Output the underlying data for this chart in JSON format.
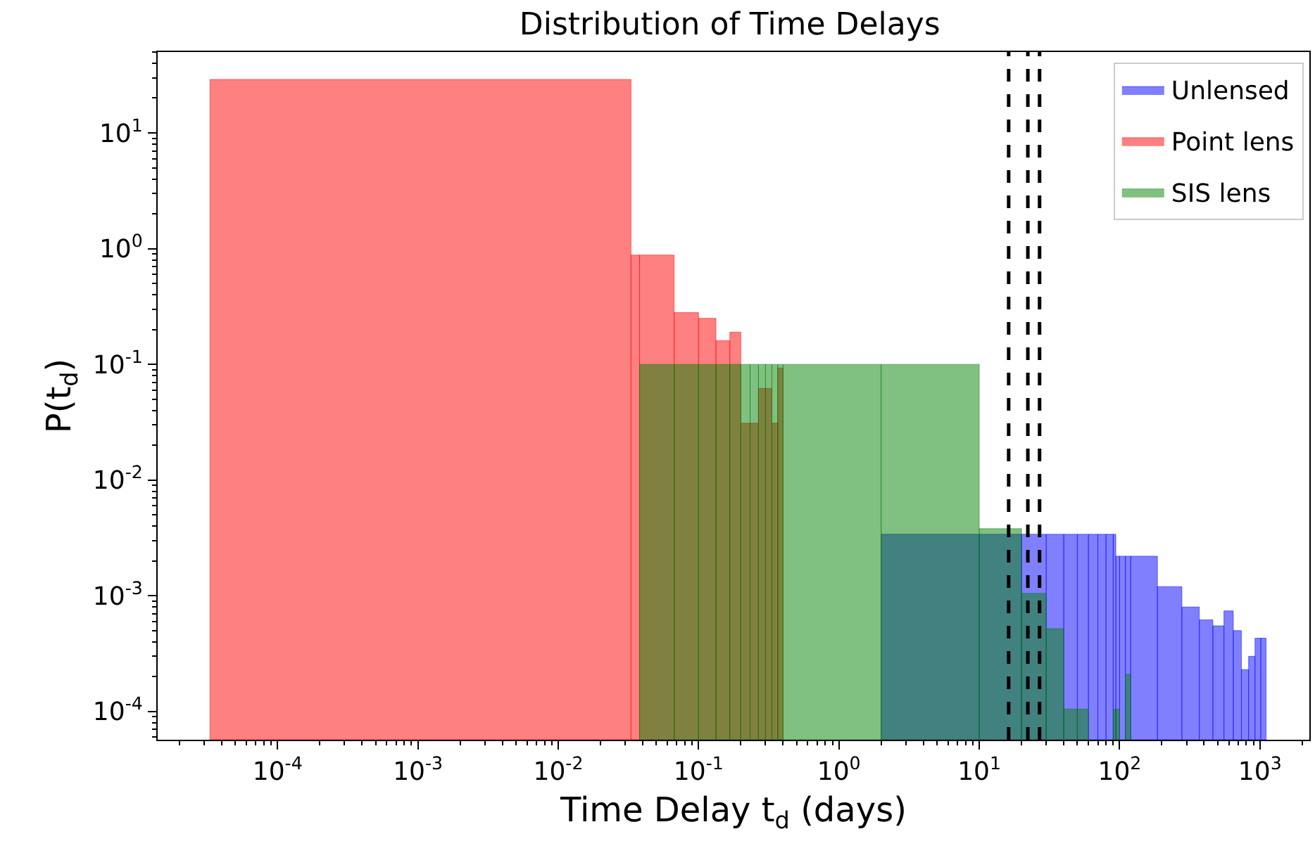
{
  "chart_data": {
    "type": "histogram",
    "title": "Distribution of Time Delays",
    "xlabel": "Time Delay t$_{d}$ (days)",
    "ylabel": "P(t$_{d}$)",
    "log": "xy",
    "xlim": [
      1.4e-05,
      2250
    ],
    "ylim": [
      5.7e-05,
      50
    ],
    "xticks": [
      {
        "value": 0.0001,
        "label": "10$^{-4}$"
      },
      {
        "value": 0.001,
        "label": "10$^{-3}$"
      },
      {
        "value": 0.01,
        "label": "10$^{-2}$"
      },
      {
        "value": 0.1,
        "label": "10$^{-1}$"
      },
      {
        "value": 1,
        "label": "10$^{0}$"
      },
      {
        "value": 10,
        "label": "10$^{1}$"
      },
      {
        "value": 100,
        "label": "10$^{2}$"
      },
      {
        "value": 1000,
        "label": "10$^{3}$"
      }
    ],
    "yticks": [
      {
        "value": 0.0001,
        "label": "10$^{-4}$"
      },
      {
        "value": 0.001,
        "label": "10$^{-3}$"
      },
      {
        "value": 0.01,
        "label": "10$^{-2}$"
      },
      {
        "value": 0.1,
        "label": "10$^{-1}$"
      },
      {
        "value": 1,
        "label": "10$^{0}$"
      },
      {
        "value": 10,
        "label": "10$^{1}$"
      }
    ],
    "legend": "top right",
    "bins": [
      3.3e-05,
      0.033,
      0.038,
      0.067,
      0.1,
      0.133,
      0.167,
      0.2,
      0.233,
      0.267,
      0.3,
      0.333,
      0.367,
      0.4,
      2,
      10,
      20,
      30,
      40,
      50,
      60,
      70,
      80,
      90,
      94,
      100,
      110,
      120,
      186,
      278,
      370,
      462,
      554,
      646,
      738,
      830,
      922,
      1014,
      1106
    ],
    "series": [
      {
        "name": "Unlensed",
        "color": "#8080ff",
        "values": [
          null,
          null,
          null,
          null,
          null,
          null,
          null,
          null,
          null,
          null,
          null,
          null,
          null,
          null,
          0.0034,
          0.0034,
          0.0034,
          0.0034,
          0.0034,
          0.0034,
          0.0034,
          0.0034,
          0.0034,
          0.0034,
          0.0022,
          0.0022,
          0.0022,
          0.0022,
          0.0012,
          0.0008,
          0.00062,
          0.00055,
          0.00074,
          0.0005,
          0.00023,
          0.0003,
          0.00043,
          0.00043
        ]
      },
      {
        "name": "Point lens",
        "color": "#ff8080",
        "values": [
          29,
          0.88,
          0.88,
          0.28,
          0.25,
          0.16,
          0.19,
          0.031,
          0.031,
          0.062,
          0.062,
          0.031,
          0.093,
          null,
          null,
          null,
          null,
          null,
          null,
          null,
          null,
          null,
          null,
          null,
          null,
          null,
          null,
          null,
          null,
          null,
          null,
          null,
          null,
          null,
          null,
          null,
          null,
          null
        ]
      },
      {
        "name": "SIS lens",
        "color": "#80c080",
        "values": [
          null,
          null,
          0.1,
          0.1,
          0.1,
          0.1,
          0.1,
          0.1,
          0.1,
          0.1,
          0.1,
          0.1,
          0.1,
          0.1,
          0.1,
          0.0038,
          0.00105,
          0.00052,
          0.000105,
          0.000105,
          null,
          null,
          null,
          0.000105,
          0.000105,
          null,
          0.00021,
          null,
          null,
          null,
          null,
          null,
          null,
          null,
          null,
          null,
          null,
          null
        ]
      }
    ],
    "ref_lines": [
      {
        "axis": "x",
        "value": 16.2,
        "color": "#000000",
        "line_style": "dashed"
      },
      {
        "axis": "x",
        "value": 22.2,
        "color": "#000000",
        "line_style": "dashed"
      },
      {
        "axis": "x",
        "value": 26.9,
        "color": "#000000",
        "line_style": "dashed"
      }
    ]
  }
}
